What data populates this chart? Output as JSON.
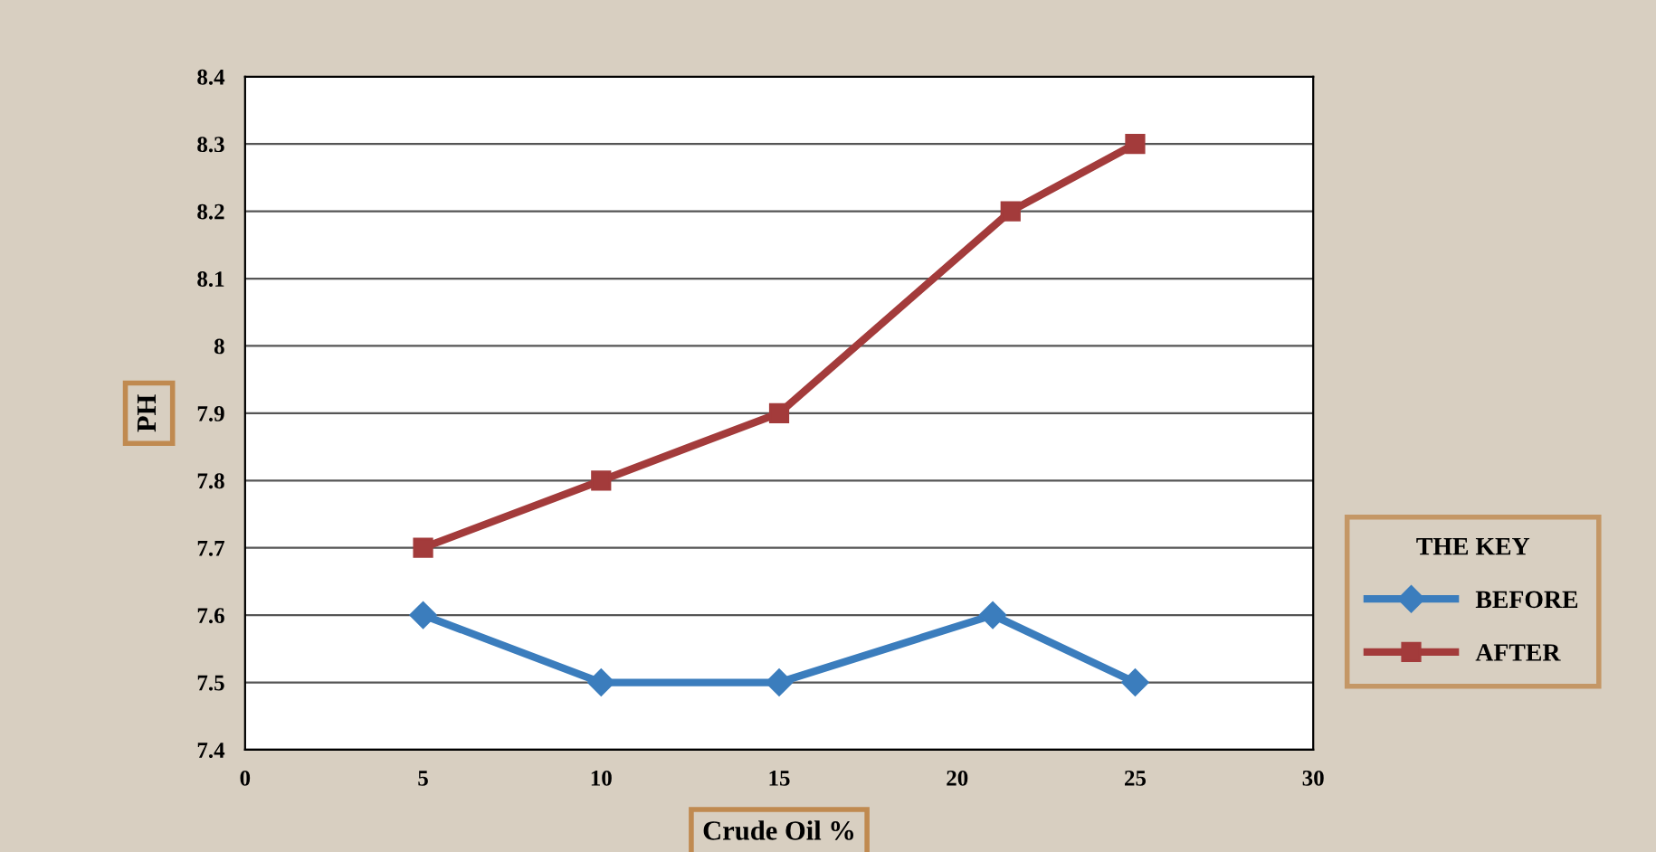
{
  "chart_data": {
    "type": "line",
    "xlabel": "Crude Oil %",
    "ylabel": "PH",
    "legend_title": "THE KEY",
    "xlim": [
      0,
      30
    ],
    "xticks": [
      0,
      5,
      10,
      15,
      20,
      25,
      30
    ],
    "ylim": [
      7.4,
      8.4
    ],
    "yticks": [
      7.4,
      7.5,
      7.6,
      7.7,
      7.8,
      7.9,
      8,
      8.1,
      8.2,
      8.3,
      8.4
    ],
    "grid": "y",
    "legend": "right",
    "series": [
      {
        "name": "BEFORE",
        "color": "#3b7dbd",
        "marker": "diamond",
        "x": [
          5,
          10,
          15,
          21,
          25
        ],
        "values": [
          7.6,
          7.5,
          7.5,
          7.6,
          7.5
        ]
      },
      {
        "name": "AFTER",
        "color": "#a33b3b",
        "marker": "square",
        "x": [
          5,
          10,
          15,
          21.5,
          25
        ],
        "values": [
          7.7,
          7.8,
          7.9,
          8.2,
          8.3
        ]
      }
    ]
  }
}
